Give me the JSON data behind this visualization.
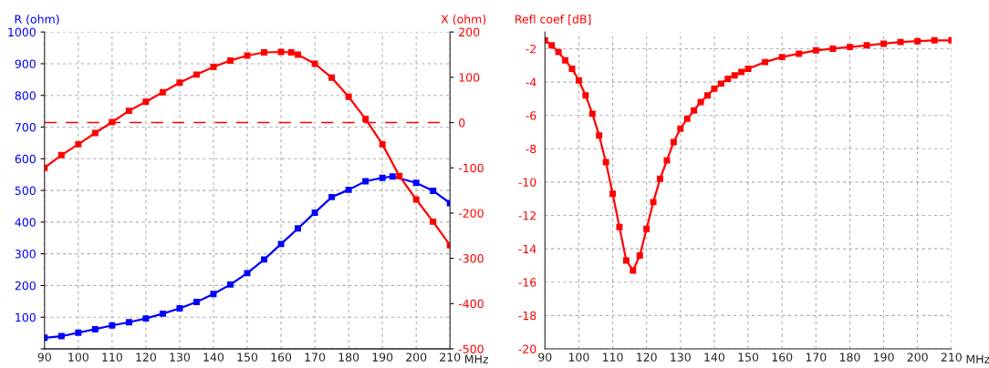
{
  "chart_data": [
    {
      "type": "line",
      "xlabel": "MHz",
      "ylabel": "R (ohm)",
      "y2label": "X (ohm)",
      "xlim": [
        90,
        210
      ],
      "xticks": [
        90,
        100,
        110,
        120,
        130,
        140,
        150,
        160,
        170,
        180,
        190,
        200,
        210
      ],
      "ylim": [
        0,
        1000
      ],
      "yticks": [
        {
          "value": 0,
          "label": null
        },
        100,
        200,
        300,
        400,
        500,
        600,
        700,
        800,
        900,
        1000
      ],
      "y2lim": [
        -500,
        200
      ],
      "y2ticks": [
        -500,
        -400,
        -300,
        -200,
        -100,
        0,
        100,
        200
      ],
      "grid": true,
      "marker": "square",
      "line_style": "solid",
      "ref_lines": [
        {
          "axis": "y2",
          "value": 0,
          "color": "#ff0000",
          "line_style": "dashed"
        }
      ],
      "series": [
        {
          "color": "#0000ff",
          "x": [
            90,
            95,
            100,
            105,
            110,
            115,
            120,
            125,
            130,
            135,
            140,
            145,
            150,
            155,
            160,
            165,
            170,
            175,
            180,
            185,
            190,
            193,
            200,
            205,
            210
          ],
          "values": [
            35,
            40,
            51,
            62,
            74,
            84,
            96,
            111,
            128,
            148,
            173,
            203,
            239,
            282,
            331,
            380,
            430,
            479,
            502,
            529,
            540,
            544,
            524,
            499,
            460
          ]
        },
        {
          "color": "#ff0000",
          "axis": "y2",
          "x": [
            90,
            95,
            100,
            105,
            110,
            115,
            120,
            125,
            130,
            135,
            140,
            145,
            150,
            155,
            160,
            163,
            165,
            170,
            175,
            180,
            185,
            190,
            195,
            200,
            205,
            210
          ],
          "values": [
            -100,
            -72,
            -48,
            -23,
            1,
            26,
            46,
            67,
            88,
            106,
            123,
            137,
            148,
            155,
            156,
            155,
            150,
            130,
            99,
            57,
            8,
            -48,
            -118,
            -170,
            -219,
            -271
          ]
        }
      ]
    },
    {
      "type": "line",
      "xlabel": "MHz",
      "ylabel": "Refl coef [dB]",
      "xlim": [
        90,
        210
      ],
      "xticks": [
        90,
        100,
        110,
        120,
        130,
        140,
        150,
        160,
        170,
        180,
        190,
        200,
        210
      ],
      "ylim": [
        -20,
        -1
      ],
      "yticks": [
        -20,
        -18,
        -16,
        -14,
        -12,
        -10,
        -8,
        -6,
        -4,
        -2
      ],
      "grid": true,
      "marker": "square",
      "line_style": "solid",
      "series": [
        {
          "color": "#ff0000",
          "x": [
            90,
            92,
            94,
            96,
            98,
            100,
            102,
            104,
            106,
            108,
            110,
            112,
            114,
            116,
            118,
            120,
            122,
            124,
            126,
            128,
            130,
            132,
            134,
            136,
            138,
            140,
            142,
            144,
            146,
            148,
            150,
            155,
            160,
            165,
            170,
            175,
            180,
            185,
            190,
            195,
            200,
            205,
            210
          ],
          "values": [
            -1.5,
            -1.8,
            -2.2,
            -2.7,
            -3.2,
            -3.9,
            -4.8,
            -5.9,
            -7.2,
            -8.8,
            -10.7,
            -12.7,
            -14.7,
            -15.3,
            -14.4,
            -12.8,
            -11.2,
            -9.8,
            -8.7,
            -7.6,
            -6.8,
            -6.2,
            -5.7,
            -5.2,
            -4.8,
            -4.4,
            -4.1,
            -3.8,
            -3.6,
            -3.4,
            -3.2,
            -2.8,
            -2.5,
            -2.3,
            -2.1,
            -2.0,
            -1.9,
            -1.8,
            -1.7,
            -1.6,
            -1.55,
            -1.5,
            -1.5
          ]
        }
      ]
    }
  ]
}
